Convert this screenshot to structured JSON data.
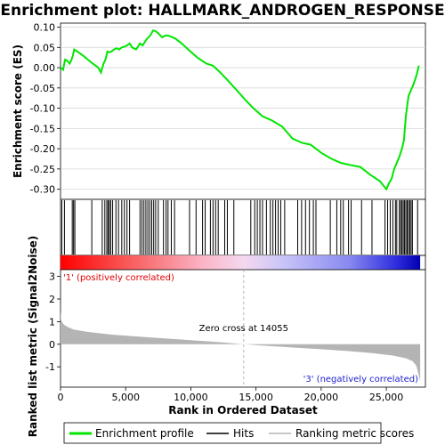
{
  "title": "Enrichment plot: HALLMARK_ANDROGEN_RESPONSE",
  "colors": {
    "es_line": "#00e600",
    "hits": "#000000",
    "metric_fill": "#b4b4b4",
    "pos_label": "#e00000",
    "neg_label": "#2020d0",
    "zero_cross_line": "#b4b4b4"
  },
  "chart_data": [
    {
      "type": "line",
      "name": "enrichment-profile",
      "ylabel": "Enrichment score (ES)",
      "xlim": [
        0,
        28000
      ],
      "ylim": [
        -0.325,
        0.11
      ],
      "yticks": [
        0.1,
        0.05,
        0.0,
        -0.05,
        -0.1,
        -0.15,
        -0.2,
        -0.25,
        -0.3
      ],
      "ytick_labels": [
        "0.10",
        "0.05",
        "0.00",
        "-0.05",
        "-0.10",
        "-0.15",
        "-0.20",
        "-0.25",
        "-0.30"
      ],
      "grid": true,
      "x": [
        0,
        200,
        350,
        500,
        700,
        850,
        950,
        1050,
        1300,
        1500,
        1800,
        2100,
        2400,
        2700,
        2900,
        3100,
        3300,
        3450,
        3600,
        3750,
        3900,
        4100,
        4300,
        4500,
        4700,
        4900,
        5100,
        5300,
        5500,
        5800,
        6100,
        6300,
        6600,
        6900,
        7100,
        7300,
        7500,
        7800,
        8100,
        8400,
        8800,
        9300,
        9800,
        10500,
        11200,
        11700,
        12200,
        12800,
        13500,
        14200,
        14800,
        15500,
        16200,
        17000,
        17800,
        18500,
        19200,
        20000,
        20800,
        21500,
        22200,
        23000,
        23800,
        24500,
        25000,
        25200,
        25400,
        25600,
        25800,
        26000,
        26200,
        26350,
        26500,
        26700,
        26900,
        27100,
        27300,
        27500
      ],
      "y": [
        0.0,
        -0.005,
        0.02,
        0.018,
        0.01,
        0.02,
        0.03,
        0.045,
        0.04,
        0.035,
        0.028,
        0.02,
        0.012,
        0.005,
        0.0,
        -0.012,
        0.01,
        0.02,
        0.04,
        0.038,
        0.04,
        0.045,
        0.048,
        0.045,
        0.05,
        0.052,
        0.055,
        0.06,
        0.05,
        0.045,
        0.06,
        0.055,
        0.07,
        0.08,
        0.092,
        0.09,
        0.085,
        0.075,
        0.08,
        0.078,
        0.072,
        0.06,
        0.045,
        0.025,
        0.01,
        0.005,
        -0.01,
        -0.03,
        -0.055,
        -0.08,
        -0.1,
        -0.12,
        -0.13,
        -0.145,
        -0.175,
        -0.185,
        -0.19,
        -0.21,
        -0.225,
        -0.235,
        -0.24,
        -0.245,
        -0.265,
        -0.28,
        -0.3,
        -0.285,
        -0.275,
        -0.25,
        -0.235,
        -0.22,
        -0.2,
        -0.18,
        -0.12,
        -0.07,
        -0.055,
        -0.04,
        -0.02,
        0.005
      ]
    },
    {
      "type": "scatter",
      "name": "hits",
      "x": [
        100,
        300,
        900,
        1000,
        1100,
        2400,
        3200,
        3400,
        3550,
        3650,
        3750,
        3850,
        4000,
        4250,
        4450,
        4700,
        4900,
        5100,
        5300,
        6100,
        6250,
        6400,
        6550,
        6700,
        6850,
        7000,
        7150,
        7300,
        7500,
        7900,
        8100,
        8250,
        8500,
        8750,
        9900,
        10400,
        10900,
        11100,
        11500,
        11700,
        11900,
        12100,
        12600,
        12800,
        13300,
        14600,
        14900,
        15100,
        15300,
        15500,
        15800,
        16100,
        16300,
        16500,
        16700,
        16900,
        17200,
        18200,
        18500,
        18800,
        19100,
        19400,
        19600,
        20700,
        21200,
        21500,
        21700,
        22100,
        22300,
        23100,
        23900,
        24900,
        25100,
        25300,
        25500,
        25700,
        25800,
        26000,
        26100,
        26200,
        26300,
        26400,
        26500,
        26600,
        26700,
        26800,
        26900,
        27000,
        27400
      ]
    },
    {
      "type": "area",
      "name": "ranked-list-metric",
      "xlabel": "Rank in Ordered Dataset",
      "ylabel": "Ranked list metric (Signal2Noise)",
      "xlim": [
        0,
        28000
      ],
      "ylim": [
        -1.9,
        3.3
      ],
      "yticks": [
        3,
        2,
        1,
        0,
        -1
      ],
      "xticks": [
        0,
        5000,
        10000,
        15000,
        20000,
        25000
      ],
      "xtick_labels": [
        "0",
        "5,000",
        "10,000",
        "15,000",
        "20,000",
        "25,000"
      ],
      "x": [
        0,
        50,
        150,
        300,
        600,
        1000,
        2000,
        4000,
        7000,
        10000,
        12000,
        14055,
        16000,
        18000,
        20000,
        22000,
        24000,
        25500,
        26500,
        27000,
        27300,
        27500,
        27600
      ],
      "y": [
        1.5,
        1.1,
        0.95,
        0.85,
        0.75,
        0.65,
        0.55,
        0.42,
        0.3,
        0.18,
        0.1,
        0.0,
        -0.08,
        -0.15,
        -0.22,
        -0.3,
        -0.4,
        -0.5,
        -0.62,
        -0.75,
        -0.95,
        -1.4,
        -1.65
      ],
      "annotations": {
        "zero_cross": "Zero cross at 14055",
        "zero_cross_x": 14055,
        "positive": "'1' (positively correlated)",
        "negative": "'3' (negatively correlated)"
      }
    }
  ],
  "legend": {
    "items": [
      {
        "label": "Enrichment profile"
      },
      {
        "label": "Hits"
      },
      {
        "label": "Ranking metric scores"
      }
    ]
  }
}
